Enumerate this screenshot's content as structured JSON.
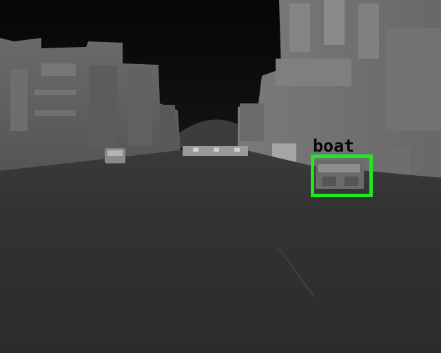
{
  "image": {
    "kind": "thermal-infrared street scene",
    "colors": {
      "box": "#1ee81e",
      "label_text": "#050505"
    }
  },
  "detections": [
    {
      "label": "boat"
    }
  ]
}
